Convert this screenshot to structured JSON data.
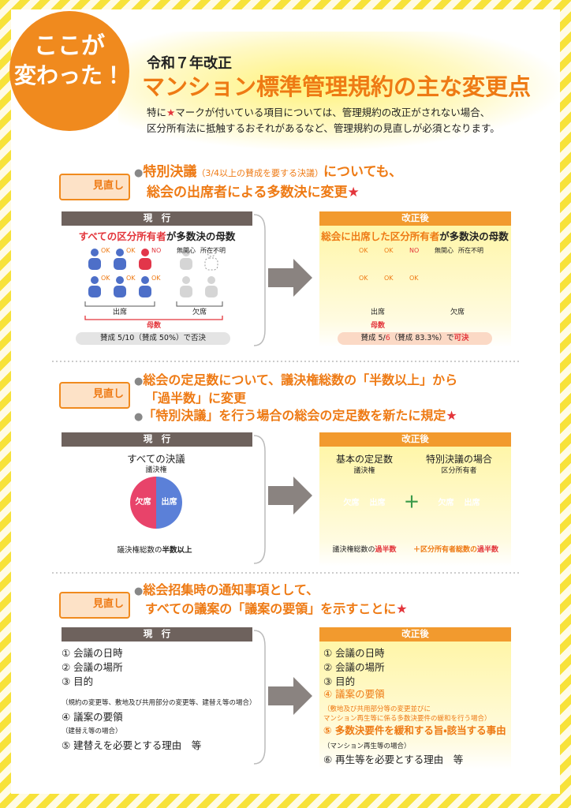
{
  "header": {
    "badge": [
      "ここが",
      "変わった！"
    ],
    "year": "令和７年改正",
    "title": "マンション標準管理規約の主な変更点",
    "intro": [
      [
        "特に",
        "★",
        "マークが付いている項目については、管理規約の改正がされない場合、"
      ],
      [
        "区分所有法に抵触するおそれがあるなど、管理規約の見直しが必須となります。"
      ]
    ]
  },
  "sections": [
    {
      "tag": "見直し",
      "heading": [
        [
          "●",
          "特別決議",
          "（3/4以上の賛成を要する決議）",
          "についても、"
        ],
        [
          "総会の出席者による多数決に変更",
          "★"
        ]
      ],
      "before": {
        "label": "現　行",
        "caption": [
          "すべての区分所有者",
          "が多数決の母数"
        ],
        "marks": [
          "OK",
          "OK",
          "NO",
          "OK",
          "OK",
          "OK"
        ],
        "absent": [
          "無関心",
          "所在不明"
        ],
        "groups": [
          "出席",
          "欠席"
        ],
        "base": "母数",
        "result": [
          "賛成 5/10（賛成 50%）で否決"
        ]
      },
      "after": {
        "label": "改正後",
        "caption": [
          "総会に出席した区分所有者",
          "が多数決の母数"
        ],
        "marks": [
          "OK",
          "OK",
          "NO",
          "OK",
          "OK",
          "OK"
        ],
        "absent": [
          "無関心",
          "所在不明"
        ],
        "groups": [
          "出席",
          "欠席"
        ],
        "base": "母数",
        "result": [
          "賛成 5/",
          "6",
          "（賛成 83.3%）で",
          "可決"
        ]
      }
    },
    {
      "tag": "見直し",
      "heading": [
        [
          "●",
          "総会の定足数について、議決権総数の「半数以上」から"
        ],
        [
          "「過半数」に変更"
        ],
        [
          "●",
          "「特別決議」を行う場合の総会の定足数を新たに規定",
          "★"
        ]
      ],
      "before": {
        "label": "現　行",
        "caption": "すべての決議",
        "pie_title": "議決権",
        "slices": [
          "欠席",
          "出席"
        ],
        "note": [
          "議決権総数の",
          "半数以上"
        ]
      },
      "after": {
        "label": "改正後",
        "plus": "＋",
        "basic": {
          "title": "基本の定足数",
          "pie_title": "議決権",
          "slices": [
            "欠席",
            "出席"
          ],
          "note": [
            "議決権総数の",
            "過半数"
          ]
        },
        "special": {
          "title": "特別決議の場合",
          "pie_title": "区分所有者",
          "slices": [
            "欠席",
            "出席"
          ],
          "note": [
            "＋区分所有者総数の",
            "過半数"
          ]
        }
      }
    },
    {
      "tag": "見直し",
      "heading": [
        [
          "●",
          "総会招集時の通知事項として、"
        ],
        [
          "すべての議案の「議案の要領」を示すことに",
          "★"
        ]
      ],
      "before": {
        "label": "現　行",
        "lines": [
          "① 会議の日時",
          "② 会議の場所",
          "③ 目的",
          "（規約の変更等、敷地及び共用部分の変更等、建替え等の場合）",
          "④ 議案の要領",
          "（建替え等の場合）",
          "⑤ 建替えを必要とする理由　等"
        ]
      },
      "after": {
        "label": "改正後",
        "lines": [
          "① 会議の日時",
          "② 会議の場所",
          "③ 目的",
          "④ 議案の要領",
          "（敷地及び共用部分等の変更並びに",
          "マンション再生等に係る多数決要件の緩和を行う場合）",
          "⑤ 多数決要件を緩和する旨・該当する事由",
          "（マンション再生等の場合）",
          "⑥ 再生等を必要とする理由　等"
        ]
      }
    }
  ]
}
